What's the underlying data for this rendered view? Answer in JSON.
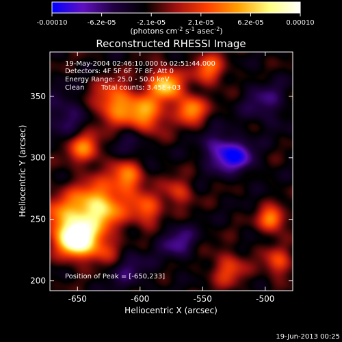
{
  "colorbar": {
    "tick_labels": [
      "-0.00010",
      "-6.2e-05",
      "-2.1e-05",
      "2.1e-05",
      "6.2e-05",
      "0.00010"
    ],
    "range": [
      -0.0001,
      0.0001
    ],
    "units_label": "(photons cm",
    "units_exp1": "-2",
    "units_mid": " s",
    "units_exp2": "-1",
    "units_end": " asec",
    "units_exp3": "-2",
    "units_close": ")",
    "colormap": [
      "#0000ff",
      "#6010c0",
      "#200040",
      "#000000",
      "#a01010",
      "#ff4000",
      "#ffa000",
      "#ffff80",
      "#ffffff"
    ]
  },
  "chart_data": {
    "type": "heatmap",
    "title": "Reconstructed RHESSI Image",
    "xlabel": "Heliocentric X (arcsec)",
    "ylabel": "Heliocentric Y (arcsec)",
    "xlim": [
      -672,
      -478
    ],
    "ylim": [
      192,
      386
    ],
    "x_ticks": [
      -650,
      -600,
      -550,
      -500
    ],
    "y_ticks": [
      200,
      250,
      300,
      350
    ],
    "annotations": {
      "line1": "19-May-2004 02:46:10.000 to 02:51:44.000",
      "line2": "Detectors: 4F 5F 6F 7F 8F, Att 0",
      "line3": "Energy Range: 25.0 - 50.0 keV",
      "line4_a": "Clean",
      "line4_b": "Total counts: 3.45E+03",
      "peak": "Position of Peak = [-650,233]"
    },
    "peak": {
      "x": -650,
      "y": 233
    },
    "blobs": [
      {
        "x": -650,
        "y": 233,
        "a": 1.0,
        "s": 10
      },
      {
        "x": -660,
        "y": 250,
        "a": 0.5,
        "s": 14
      },
      {
        "x": -633,
        "y": 260,
        "a": 0.75,
        "s": 14
      },
      {
        "x": -610,
        "y": 285,
        "a": 0.55,
        "s": 9
      },
      {
        "x": -645,
        "y": 308,
        "a": 0.5,
        "s": 9
      },
      {
        "x": -620,
        "y": 345,
        "a": 0.55,
        "s": 12
      },
      {
        "x": -595,
        "y": 335,
        "a": 0.55,
        "s": 11
      },
      {
        "x": -580,
        "y": 360,
        "a": 0.7,
        "s": 9
      },
      {
        "x": -560,
        "y": 340,
        "a": 0.6,
        "s": 8
      },
      {
        "x": -545,
        "y": 372,
        "a": 0.45,
        "s": 9
      },
      {
        "x": -595,
        "y": 258,
        "a": 0.45,
        "s": 9
      },
      {
        "x": -570,
        "y": 272,
        "a": 0.35,
        "s": 8
      },
      {
        "x": -530,
        "y": 210,
        "a": 0.35,
        "s": 10
      },
      {
        "x": -495,
        "y": 250,
        "a": 0.6,
        "s": 7
      },
      {
        "x": -490,
        "y": 215,
        "a": 0.4,
        "s": 8
      },
      {
        "x": -628,
        "y": 225,
        "a": 0.35,
        "s": 8
      },
      {
        "x": -535,
        "y": 305,
        "a": -0.45,
        "s": 10
      },
      {
        "x": -520,
        "y": 300,
        "a": -0.35,
        "s": 9
      },
      {
        "x": -570,
        "y": 232,
        "a": -0.3,
        "s": 10
      },
      {
        "x": -610,
        "y": 210,
        "a": -0.2,
        "s": 12
      },
      {
        "x": -660,
        "y": 335,
        "a": -0.25,
        "s": 12
      },
      {
        "x": -605,
        "y": 310,
        "a": -0.2,
        "s": 10
      },
      {
        "x": -500,
        "y": 345,
        "a": -0.25,
        "s": 12
      }
    ]
  },
  "footer": {
    "timestamp": "19-Jun-2013 00:25"
  }
}
